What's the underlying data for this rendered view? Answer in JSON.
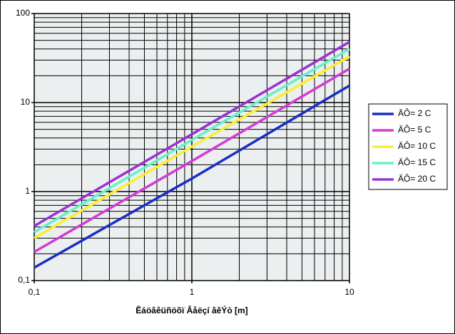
{
  "chart_data": {
    "type": "line",
    "x_label": "Êáöâêüñöõï  Âåëçí âêÝò [m]",
    "x": [
      0.1,
      1,
      10
    ],
    "series": [
      {
        "name": "ÄÔ= 2 C",
        "color": "#1a2fc0",
        "values": [
          0.14,
          1.4,
          15.5
        ]
      },
      {
        "name": "ÄÔ= 5 C",
        "color": "#d23cd2",
        "values": [
          0.21,
          2.2,
          24
        ]
      },
      {
        "name": "ÄÔ= 10 C",
        "color": "#f5f032",
        "values": [
          0.3,
          3.2,
          33
        ]
      },
      {
        "name": "ÄÔ= 15 C",
        "color": "#66f0c8",
        "values": [
          0.35,
          3.8,
          40
        ]
      },
      {
        "name": "ÄÔ= 20 C",
        "color": "#9a32d2",
        "values": [
          0.41,
          4.4,
          48
        ]
      }
    ],
    "xlim": [
      0.1,
      10
    ],
    "ylim": [
      0.1,
      100
    ],
    "xticks": [
      {
        "value": 0.1,
        "label": "0,1"
      },
      1,
      10
    ],
    "yticks": [
      {
        "value": 0.1,
        "label": "0,1"
      },
      1,
      10,
      100
    ],
    "log_x": true,
    "log_y": true,
    "grid": true,
    "legend": "right"
  }
}
